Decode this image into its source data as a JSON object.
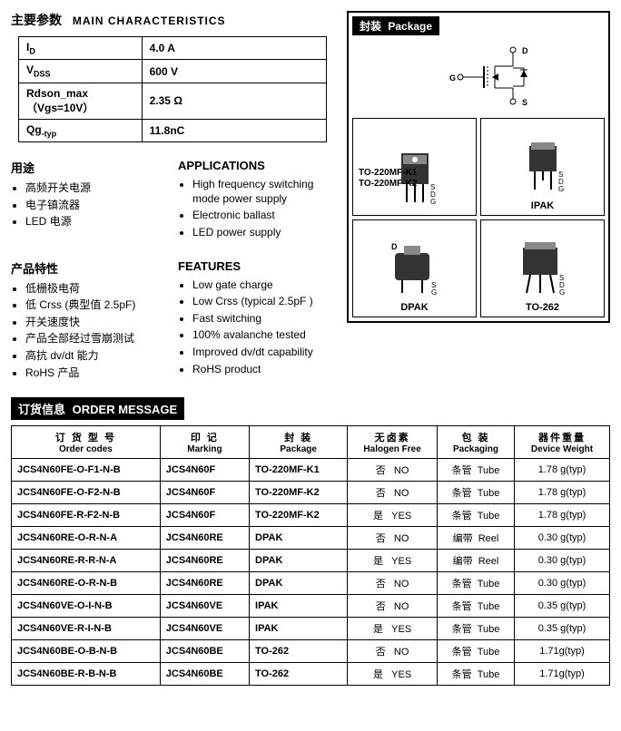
{
  "main_char": {
    "title_cn": "主要参数",
    "title_en": "MAIN  CHARACTERISTICS",
    "rows": [
      {
        "param": "I",
        "sub": "D",
        "value": "4.0 A"
      },
      {
        "param": "V",
        "sub": "DSS",
        "value": "600 V"
      },
      {
        "param2": "Rdson_max （Vgs=10V）",
        "value": "2.35 Ω"
      },
      {
        "param": "Qg",
        "sub": "-typ",
        "value": "11.8nC"
      }
    ]
  },
  "applications": {
    "title_cn": "用途",
    "title_en": "APPLICATIONS",
    "cn_items": [
      "高频开关电源",
      "电子镇流器",
      "LED 电源"
    ],
    "en_items": [
      "High frequency switching mode power supply",
      "Electronic ballast",
      "LED power supply"
    ]
  },
  "features": {
    "title_cn": "产品特性",
    "title_en": "FEATURES",
    "cn_items": [
      "低栅极电荷",
      "低 Crss (典型值 2.5pF)",
      "开关速度快",
      "产品全部经过雪崩测试",
      "高抗 dv/dt 能力",
      "RoHS 产品"
    ],
    "en_items": [
      "Low gate charge",
      "Low Crss (typical 2.5pF )",
      "Fast switching",
      "100% avalanche tested",
      "Improved dv/dt capability",
      "RoHS product"
    ]
  },
  "package": {
    "title_cn": "封装",
    "title_en": "Package",
    "schematic_pins": {
      "d": "D",
      "g": "G",
      "s": "S"
    },
    "cells": [
      {
        "sideline1": "TO-220MF-K1",
        "sideline2": "TO-220MF-K2",
        "bottom": "",
        "type": "to220"
      },
      {
        "bottom": "IPAK",
        "type": "ipak"
      },
      {
        "bottom": "DPAK",
        "type": "dpak"
      },
      {
        "bottom": "TO-262",
        "type": "to262"
      }
    ]
  },
  "order": {
    "banner_cn": "订货信息",
    "banner_en": "ORDER MESSAGE",
    "headers": [
      {
        "cn": "订 货 型 号",
        "en": "Order codes"
      },
      {
        "cn": "印    记",
        "en": "Marking"
      },
      {
        "cn": "封    装",
        "en": "Package"
      },
      {
        "cn": "无卤素",
        "en": "Halogen Free"
      },
      {
        "cn": "包    装",
        "en": "Packaging"
      },
      {
        "cn": "器件重量",
        "en": "Device Weight"
      }
    ],
    "rows": [
      {
        "code": "JCS4N60FE-O-F1-N-B",
        "mark": "JCS4N60F",
        "pkg": "TO-220MF-K1",
        "hf_cn": "否",
        "hf_en": "NO",
        "pack_cn": "条管",
        "pack_en": "Tube",
        "wt": "1.78 g(typ)"
      },
      {
        "code": "JCS4N60FE-O-F2-N-B",
        "mark": "JCS4N60F",
        "pkg": "TO-220MF-K2",
        "hf_cn": "否",
        "hf_en": "NO",
        "pack_cn": "条管",
        "pack_en": "Tube",
        "wt": "1.78 g(typ)"
      },
      {
        "code": "JCS4N60FE-R-F2-N-B",
        "mark": "JCS4N60F",
        "pkg": "TO-220MF-K2",
        "hf_cn": "是",
        "hf_en": "YES",
        "pack_cn": "条管",
        "pack_en": "Tube",
        "wt": "1.78 g(typ)"
      },
      {
        "code": "JCS4N60RE-O-R-N-A",
        "mark": "JCS4N60RE",
        "pkg": "DPAK",
        "hf_cn": "否",
        "hf_en": "NO",
        "pack_cn": "编带",
        "pack_en": "Reel",
        "wt": "0.30 g(typ)"
      },
      {
        "code": "JCS4N60RE-R-R-N-A",
        "mark": "JCS4N60RE",
        "pkg": "DPAK",
        "hf_cn": "是",
        "hf_en": "YES",
        "pack_cn": "编带",
        "pack_en": "Reel",
        "wt": "0.30 g(typ)"
      },
      {
        "code": "JCS4N60RE-O-R-N-B",
        "mark": "JCS4N60RE",
        "pkg": "DPAK",
        "hf_cn": "否",
        "hf_en": "NO",
        "pack_cn": "条管",
        "pack_en": "Tube",
        "wt": "0.30 g(typ)"
      },
      {
        "code": "JCS4N60VE-O-I-N-B",
        "mark": "JCS4N60VE",
        "pkg": "IPAK",
        "hf_cn": "否",
        "hf_en": "NO",
        "pack_cn": "条管",
        "pack_en": "Tube",
        "wt": "0.35 g(typ)"
      },
      {
        "code": "JCS4N60VE-R-I-N-B",
        "mark": "JCS4N60VE",
        "pkg": "IPAK",
        "hf_cn": "是",
        "hf_en": "YES",
        "pack_cn": "条管",
        "pack_en": "Tube",
        "wt": "0.35 g(typ)"
      },
      {
        "code": "JCS4N60BE-O-B-N-B",
        "mark": "JCS4N60BE",
        "pkg": "TO-262",
        "hf_cn": "否",
        "hf_en": "NO",
        "pack_cn": "条管",
        "pack_en": "Tube",
        "wt": "1.71g(typ)"
      },
      {
        "code": "JCS4N60BE-R-B-N-B",
        "mark": "JCS4N60BE",
        "pkg": "TO-262",
        "hf_cn": "是",
        "hf_en": "YES",
        "pack_cn": "条管",
        "pack_en": "Tube",
        "wt": "1.71g(typ)"
      }
    ]
  }
}
